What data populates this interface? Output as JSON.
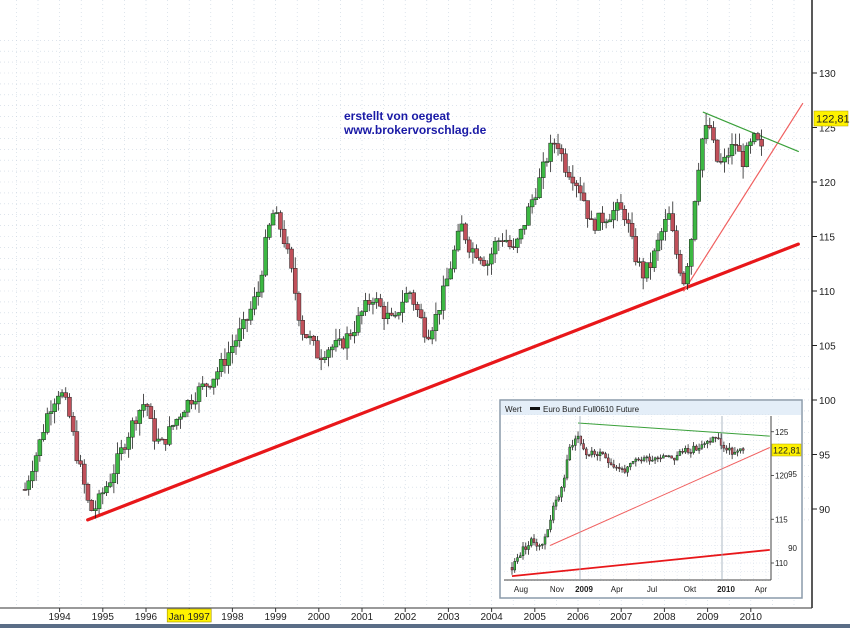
{
  "annotation": {
    "line1": "erstellt von oegeat",
    "line2": "www.brokervorschlag.de"
  },
  "colors": {
    "up": "#3cb843",
    "down": "#c0505a",
    "support": "#e8171a",
    "channel": "#f06060",
    "resistance": "#3aa03a",
    "label_bg": "#fff200"
  },
  "chart_data": [
    {
      "type": "candlestick",
      "title": "",
      "x_ticks": [
        "1994",
        "1995",
        "1996",
        "Jan 1997",
        "1998",
        "1999",
        "2000",
        "2001",
        "2002",
        "2003",
        "2004",
        "2005",
        "2006",
        "2007",
        "2008",
        "2009",
        "2010"
      ],
      "highlighted_x_tick": "Jan 1997",
      "y_ticks": [
        105,
        110,
        115,
        120,
        125,
        130
      ],
      "y_ticks_partial": [
        90,
        95,
        100
      ],
      "ylim": [
        89,
        133
      ],
      "last_price_label": "122,81",
      "close_path": [
        [
          1993.2,
          91.8
        ],
        [
          1993.35,
          93.8
        ],
        [
          1993.5,
          95.5
        ],
        [
          1993.75,
          99.2
        ],
        [
          1994.0,
          101.0
        ],
        [
          1994.2,
          99.0
        ],
        [
          1994.4,
          95.0
        ],
        [
          1994.55,
          92.5
        ],
        [
          1994.7,
          89.8
        ],
        [
          1994.85,
          90.2
        ],
        [
          1995.0,
          91.5
        ],
        [
          1995.2,
          93.0
        ],
        [
          1995.4,
          95.0
        ],
        [
          1995.6,
          97.0
        ],
        [
          1995.8,
          98.8
        ],
        [
          1996.0,
          100.0
        ],
        [
          1996.15,
          97.0
        ],
        [
          1996.35,
          95.8
        ],
        [
          1996.6,
          97.5
        ],
        [
          1996.9,
          99.5
        ],
        [
          1997.2,
          100.8
        ],
        [
          1997.5,
          101.8
        ],
        [
          1997.8,
          103.5
        ],
        [
          1998.0,
          105.0
        ],
        [
          1998.3,
          107.0
        ],
        [
          1998.6,
          110.0
        ],
        [
          1998.8,
          115.0
        ],
        [
          1998.95,
          117.2
        ],
        [
          1999.15,
          115.5
        ],
        [
          1999.3,
          113.0
        ],
        [
          1999.45,
          110.0
        ],
        [
          1999.6,
          106.5
        ],
        [
          1999.8,
          105.5
        ],
        [
          2000.0,
          104.0
        ],
        [
          2000.2,
          104.8
        ],
        [
          2000.5,
          105.0
        ],
        [
          2000.8,
          106.5
        ],
        [
          2001.0,
          108.0
        ],
        [
          2001.25,
          109.5
        ],
        [
          2001.5,
          108.0
        ],
        [
          2001.75,
          107.0
        ],
        [
          2001.9,
          109.0
        ],
        [
          2002.1,
          110.0
        ],
        [
          2002.3,
          108.0
        ],
        [
          2002.5,
          106.0
        ],
        [
          2002.7,
          107.5
        ],
        [
          2002.9,
          110.0
        ],
        [
          2003.1,
          113.0
        ],
        [
          2003.3,
          116.0
        ],
        [
          2003.5,
          114.0
        ],
        [
          2003.7,
          113.5
        ],
        [
          2003.9,
          112.5
        ],
        [
          2004.1,
          114.5
        ],
        [
          2004.3,
          115.0
        ],
        [
          2004.5,
          113.5
        ],
        [
          2004.7,
          115.5
        ],
        [
          2004.9,
          118.0
        ],
        [
          2005.1,
          120.0
        ],
        [
          2005.3,
          122.5
        ],
        [
          2005.5,
          124.0
        ],
        [
          2005.7,
          121.5
        ],
        [
          2005.9,
          120.5
        ],
        [
          2006.1,
          119.0
        ],
        [
          2006.3,
          116.0
        ],
        [
          2006.5,
          116.5
        ],
        [
          2006.7,
          117.0
        ],
        [
          2006.9,
          117.5
        ],
        [
          2007.1,
          117.0
        ],
        [
          2007.3,
          113.5
        ],
        [
          2007.5,
          111.5
        ],
        [
          2007.7,
          112.5
        ],
        [
          2007.9,
          115.0
        ],
        [
          2008.1,
          117.0
        ],
        [
          2008.3,
          113.0
        ],
        [
          2008.45,
          111.0
        ],
        [
          2008.6,
          114.0
        ],
        [
          2008.75,
          120.5
        ],
        [
          2008.9,
          124.5
        ],
        [
          2009.05,
          125.0
        ],
        [
          2009.2,
          122.0
        ],
        [
          2009.35,
          121.5
        ],
        [
          2009.5,
          122.8
        ],
        [
          2009.65,
          123.5
        ],
        [
          2009.8,
          121.8
        ],
        [
          2009.95,
          123.0
        ],
        [
          2010.1,
          124.0
        ],
        [
          2010.25,
          122.81
        ]
      ],
      "trendlines": [
        {
          "name": "support",
          "from": [
            1994.65,
            89.0
          ],
          "to": [
            2011.1,
            114.3
          ]
        },
        {
          "name": "channel",
          "from": [
            2008.45,
            110.0
          ],
          "to": [
            2011.2,
            127.2
          ]
        },
        {
          "name": "resistance",
          "from": [
            2008.9,
            126.4
          ],
          "to": [
            2011.1,
            122.8
          ]
        }
      ]
    },
    {
      "type": "candlestick",
      "title": "Euro Bund Full0610 Future",
      "legend_label": "Wert",
      "x_ticks": [
        "Aug",
        "Nov",
        "2009",
        "Apr",
        "Jul",
        "Okt",
        "2010",
        "Apr"
      ],
      "bold_x_ticks": [
        "2009",
        "2010"
      ],
      "y_ticks": [
        110,
        115,
        120,
        125
      ],
      "left_y_ticks": [
        90,
        95
      ],
      "ylim": [
        107.5,
        127.5
      ],
      "last_price_label": "122,81",
      "close_path": [
        [
          0.0,
          109.5
        ],
        [
          0.8,
          111.5
        ],
        [
          1.6,
          112.5
        ],
        [
          2.4,
          112.0
        ],
        [
          3.2,
          116.0
        ],
        [
          4.0,
          119.0
        ],
        [
          4.6,
          123.5
        ],
        [
          5.2,
          124.5
        ],
        [
          5.8,
          122.5
        ],
        [
          6.6,
          122.5
        ],
        [
          7.4,
          122.0
        ],
        [
          8.2,
          121.0
        ],
        [
          9.0,
          120.5
        ],
        [
          9.6,
          121.5
        ],
        [
          10.4,
          122.0
        ],
        [
          11.2,
          122.0
        ],
        [
          12.0,
          122.5
        ],
        [
          12.8,
          122.0
        ],
        [
          13.6,
          123.0
        ],
        [
          14.4,
          123.0
        ],
        [
          15.2,
          123.5
        ],
        [
          16.0,
          124.5
        ],
        [
          16.8,
          123.0
        ],
        [
          17.6,
          122.5
        ],
        [
          18.2,
          122.81
        ]
      ],
      "trendlines": [
        {
          "name": "resistance",
          "from": [
            5.2,
            126.0
          ],
          "to": [
            20.3,
            124.5
          ]
        },
        {
          "name": "channel",
          "from": [
            3.0,
            112.0
          ],
          "to": [
            20.3,
            123.2
          ]
        },
        {
          "name": "support",
          "from": [
            0.0,
            108.5
          ],
          "to": [
            20.3,
            111.5
          ]
        }
      ]
    }
  ]
}
